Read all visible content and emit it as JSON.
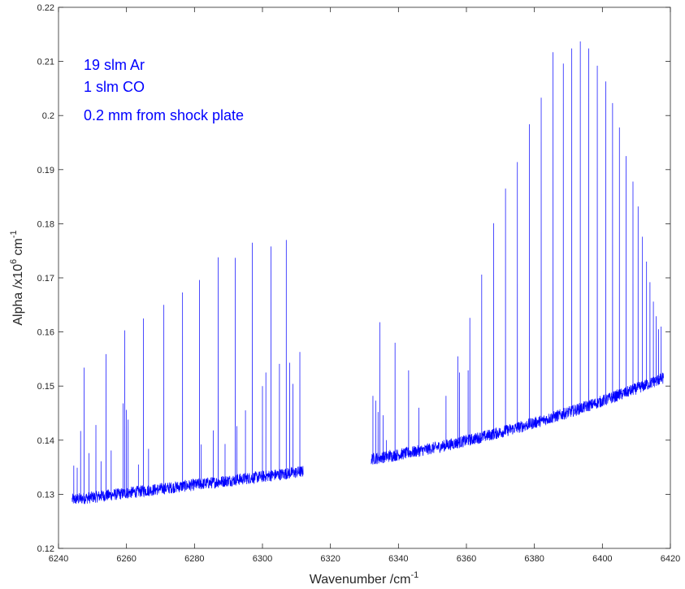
{
  "chart_data": {
    "type": "line",
    "xlabel": "Wavenumber /cm",
    "xlabel_sup": "-1",
    "ylabel_parts": [
      "Alpha  /x10",
      "6",
      " cm",
      "-1"
    ],
    "xlim": [
      6240,
      6420
    ],
    "ylim": [
      0.12,
      0.22
    ],
    "x_ticks": [
      6240,
      6260,
      6280,
      6300,
      6320,
      6340,
      6360,
      6380,
      6400,
      6420
    ],
    "y_ticks": [
      "0.12",
      "0.13",
      "0.14",
      "0.15",
      "0.16",
      "0.17",
      "0.18",
      "0.19",
      "0.2",
      "0.21",
      "0.22"
    ],
    "grid": false,
    "line_color": "#0000ff",
    "annotations": [
      "19 slm Ar",
      "1 slm CO",
      "0.2 mm from shock plate"
    ],
    "series": [
      {
        "segment": "low",
        "x_range": [
          6244,
          6312
        ],
        "baseline_start": 0.129,
        "baseline_end": 0.1342,
        "peaks": [
          [
            6244.5,
            0.1353
          ],
          [
            6245.5,
            0.1349
          ],
          [
            6246.5,
            0.1417
          ],
          [
            6247.5,
            0.1534
          ],
          [
            6249.0,
            0.1376
          ],
          [
            6251.0,
            0.1428
          ],
          [
            6252.5,
            0.1361
          ],
          [
            6254.0,
            0.1559
          ],
          [
            6255.5,
            0.1381
          ],
          [
            6259.0,
            0.1468
          ],
          [
            6259.5,
            0.1603
          ],
          [
            6260.0,
            0.1456
          ],
          [
            6260.5,
            0.1438
          ],
          [
            6263.5,
            0.1355
          ],
          [
            6265.0,
            0.1625
          ],
          [
            6266.5,
            0.1384
          ],
          [
            6271.0,
            0.165
          ],
          [
            6276.5,
            0.1673
          ],
          [
            6281.5,
            0.1696
          ],
          [
            6282.0,
            0.1392
          ],
          [
            6285.5,
            0.1418
          ],
          [
            6287.0,
            0.1738
          ],
          [
            6289.0,
            0.1393
          ],
          [
            6292.0,
            0.1737
          ],
          [
            6292.5,
            0.1426
          ],
          [
            6295.0,
            0.1455
          ],
          [
            6297.0,
            0.1765
          ],
          [
            6300.0,
            0.15
          ],
          [
            6301.0,
            0.1525
          ],
          [
            6302.5,
            0.1758
          ],
          [
            6305.0,
            0.1541
          ],
          [
            6307.0,
            0.177
          ],
          [
            6308.0,
            0.1543
          ],
          [
            6309.0,
            0.1504
          ],
          [
            6311.0,
            0.1563
          ]
        ]
      },
      {
        "segment": "high",
        "x_range": [
          6332,
          6418
        ],
        "baseline_start": 0.1365,
        "baseline_end": 0.1515,
        "peaks": [
          [
            6332.5,
            0.1482
          ],
          [
            6333.3,
            0.1473
          ],
          [
            6334.0,
            0.1452
          ],
          [
            6334.5,
            0.1618
          ],
          [
            6335.5,
            0.1446
          ],
          [
            6336.5,
            0.14
          ],
          [
            6337.5,
            0.1382
          ],
          [
            6339.0,
            0.158
          ],
          [
            6343.0,
            0.1529
          ],
          [
            6346.0,
            0.146
          ],
          [
            6354.0,
            0.1482
          ],
          [
            6357.5,
            0.1555
          ],
          [
            6358.0,
            0.1525
          ],
          [
            6360.5,
            0.1529
          ],
          [
            6361.0,
            0.1626
          ],
          [
            6364.5,
            0.1706
          ],
          [
            6368.0,
            0.1801
          ],
          [
            6371.5,
            0.1865
          ],
          [
            6375.0,
            0.1914
          ],
          [
            6378.5,
            0.1984
          ],
          [
            6382.0,
            0.2033
          ],
          [
            6385.5,
            0.2117
          ],
          [
            6388.5,
            0.2096
          ],
          [
            6391.0,
            0.2124
          ],
          [
            6393.5,
            0.2137
          ],
          [
            6396.0,
            0.2124
          ],
          [
            6398.5,
            0.2092
          ],
          [
            6401.0,
            0.2063
          ],
          [
            6403.0,
            0.2023
          ],
          [
            6405.0,
            0.1978
          ],
          [
            6407.0,
            0.1925
          ],
          [
            6409.0,
            0.1878
          ],
          [
            6410.5,
            0.1832
          ],
          [
            6411.8,
            0.1776
          ],
          [
            6413.0,
            0.173
          ],
          [
            6414.0,
            0.1692
          ],
          [
            6415.0,
            0.1656
          ],
          [
            6415.8,
            0.1629
          ],
          [
            6416.5,
            0.1605
          ],
          [
            6417.3,
            0.161
          ]
        ]
      }
    ]
  }
}
